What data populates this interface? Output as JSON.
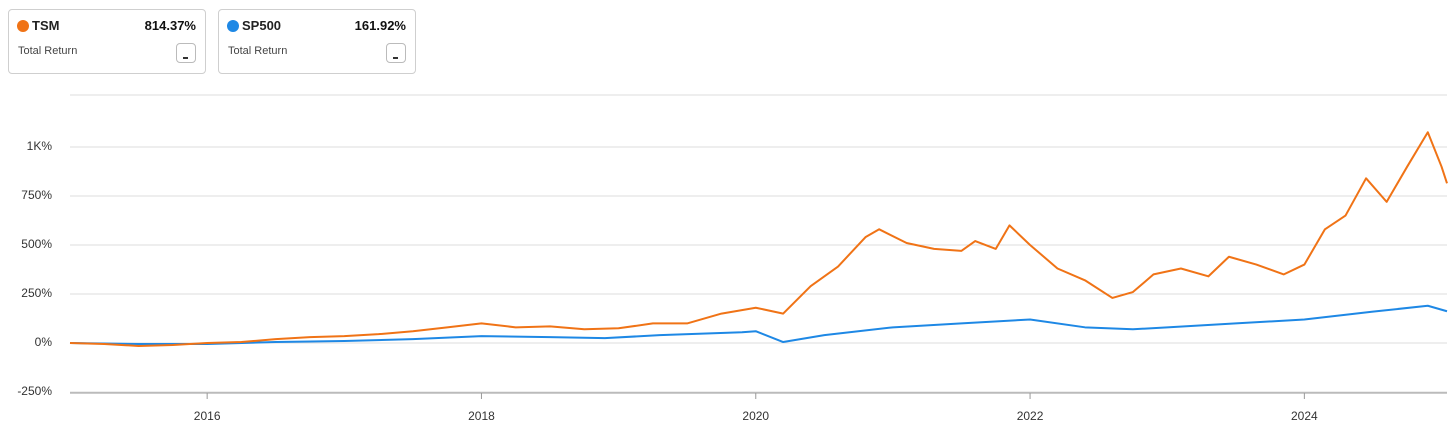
{
  "chart_data": {
    "type": "line",
    "xlim": [
      2015.0,
      2025.04
    ],
    "xticks": [
      2016,
      2018,
      2020,
      2022,
      2024
    ],
    "ylim": [
      -255,
      1265
    ],
    "yticks": [
      {
        "value": -250,
        "label": "-250%"
      },
      {
        "value": 0,
        "label": "0%"
      },
      {
        "value": 250,
        "label": "250%"
      },
      {
        "value": 500,
        "label": "500%"
      },
      {
        "value": 750,
        "label": "750%"
      },
      {
        "value": 1000,
        "label": "1K%"
      }
    ],
    "grid": true,
    "series": [
      {
        "name": "TSM",
        "color": "#f07316",
        "total_return": "814.37%",
        "metric": "Total Return",
        "x": [
          2015.0,
          2015.25,
          2015.5,
          2015.75,
          2016.0,
          2016.25,
          2016.5,
          2016.75,
          2017.0,
          2017.25,
          2017.5,
          2017.75,
          2018.0,
          2018.25,
          2018.5,
          2018.75,
          2019.0,
          2019.25,
          2019.5,
          2019.75,
          2020.0,
          2020.2,
          2020.4,
          2020.6,
          2020.8,
          2020.9,
          2021.1,
          2021.3,
          2021.5,
          2021.6,
          2021.75,
          2021.85,
          2022.0,
          2022.2,
          2022.4,
          2022.6,
          2022.75,
          2022.9,
          2023.1,
          2023.3,
          2023.45,
          2023.65,
          2023.85,
          2024.0,
          2024.15,
          2024.3,
          2024.45,
          2024.6,
          2024.75,
          2024.9,
          2025.0,
          2025.04
        ],
        "values": [
          0,
          -5,
          -15,
          -10,
          0,
          5,
          20,
          30,
          35,
          45,
          60,
          80,
          100,
          80,
          85,
          70,
          75,
          100,
          100,
          150,
          180,
          150,
          290,
          390,
          540,
          580,
          510,
          480,
          470,
          520,
          480,
          600,
          500,
          380,
          320,
          230,
          260,
          350,
          380,
          340,
          440,
          400,
          350,
          400,
          580,
          650,
          840,
          720,
          900,
          1075,
          900,
          814.37
        ]
      },
      {
        "name": "SP500",
        "color": "#1e88e5",
        "total_return": "161.92%",
        "metric": "Total Return",
        "x": [
          2015.0,
          2015.5,
          2016.0,
          2016.5,
          2017.0,
          2017.5,
          2018.0,
          2018.5,
          2018.9,
          2019.3,
          2019.9,
          2020.0,
          2020.2,
          2020.5,
          2021.0,
          2021.5,
          2022.0,
          2022.4,
          2022.75,
          2023.0,
          2023.5,
          2024.0,
          2024.5,
          2024.9,
          2025.04
        ],
        "values": [
          0,
          -5,
          -5,
          5,
          10,
          20,
          35,
          30,
          25,
          40,
          55,
          60,
          5,
          40,
          80,
          100,
          120,
          80,
          70,
          80,
          100,
          120,
          160,
          190,
          161.92
        ]
      }
    ]
  }
}
